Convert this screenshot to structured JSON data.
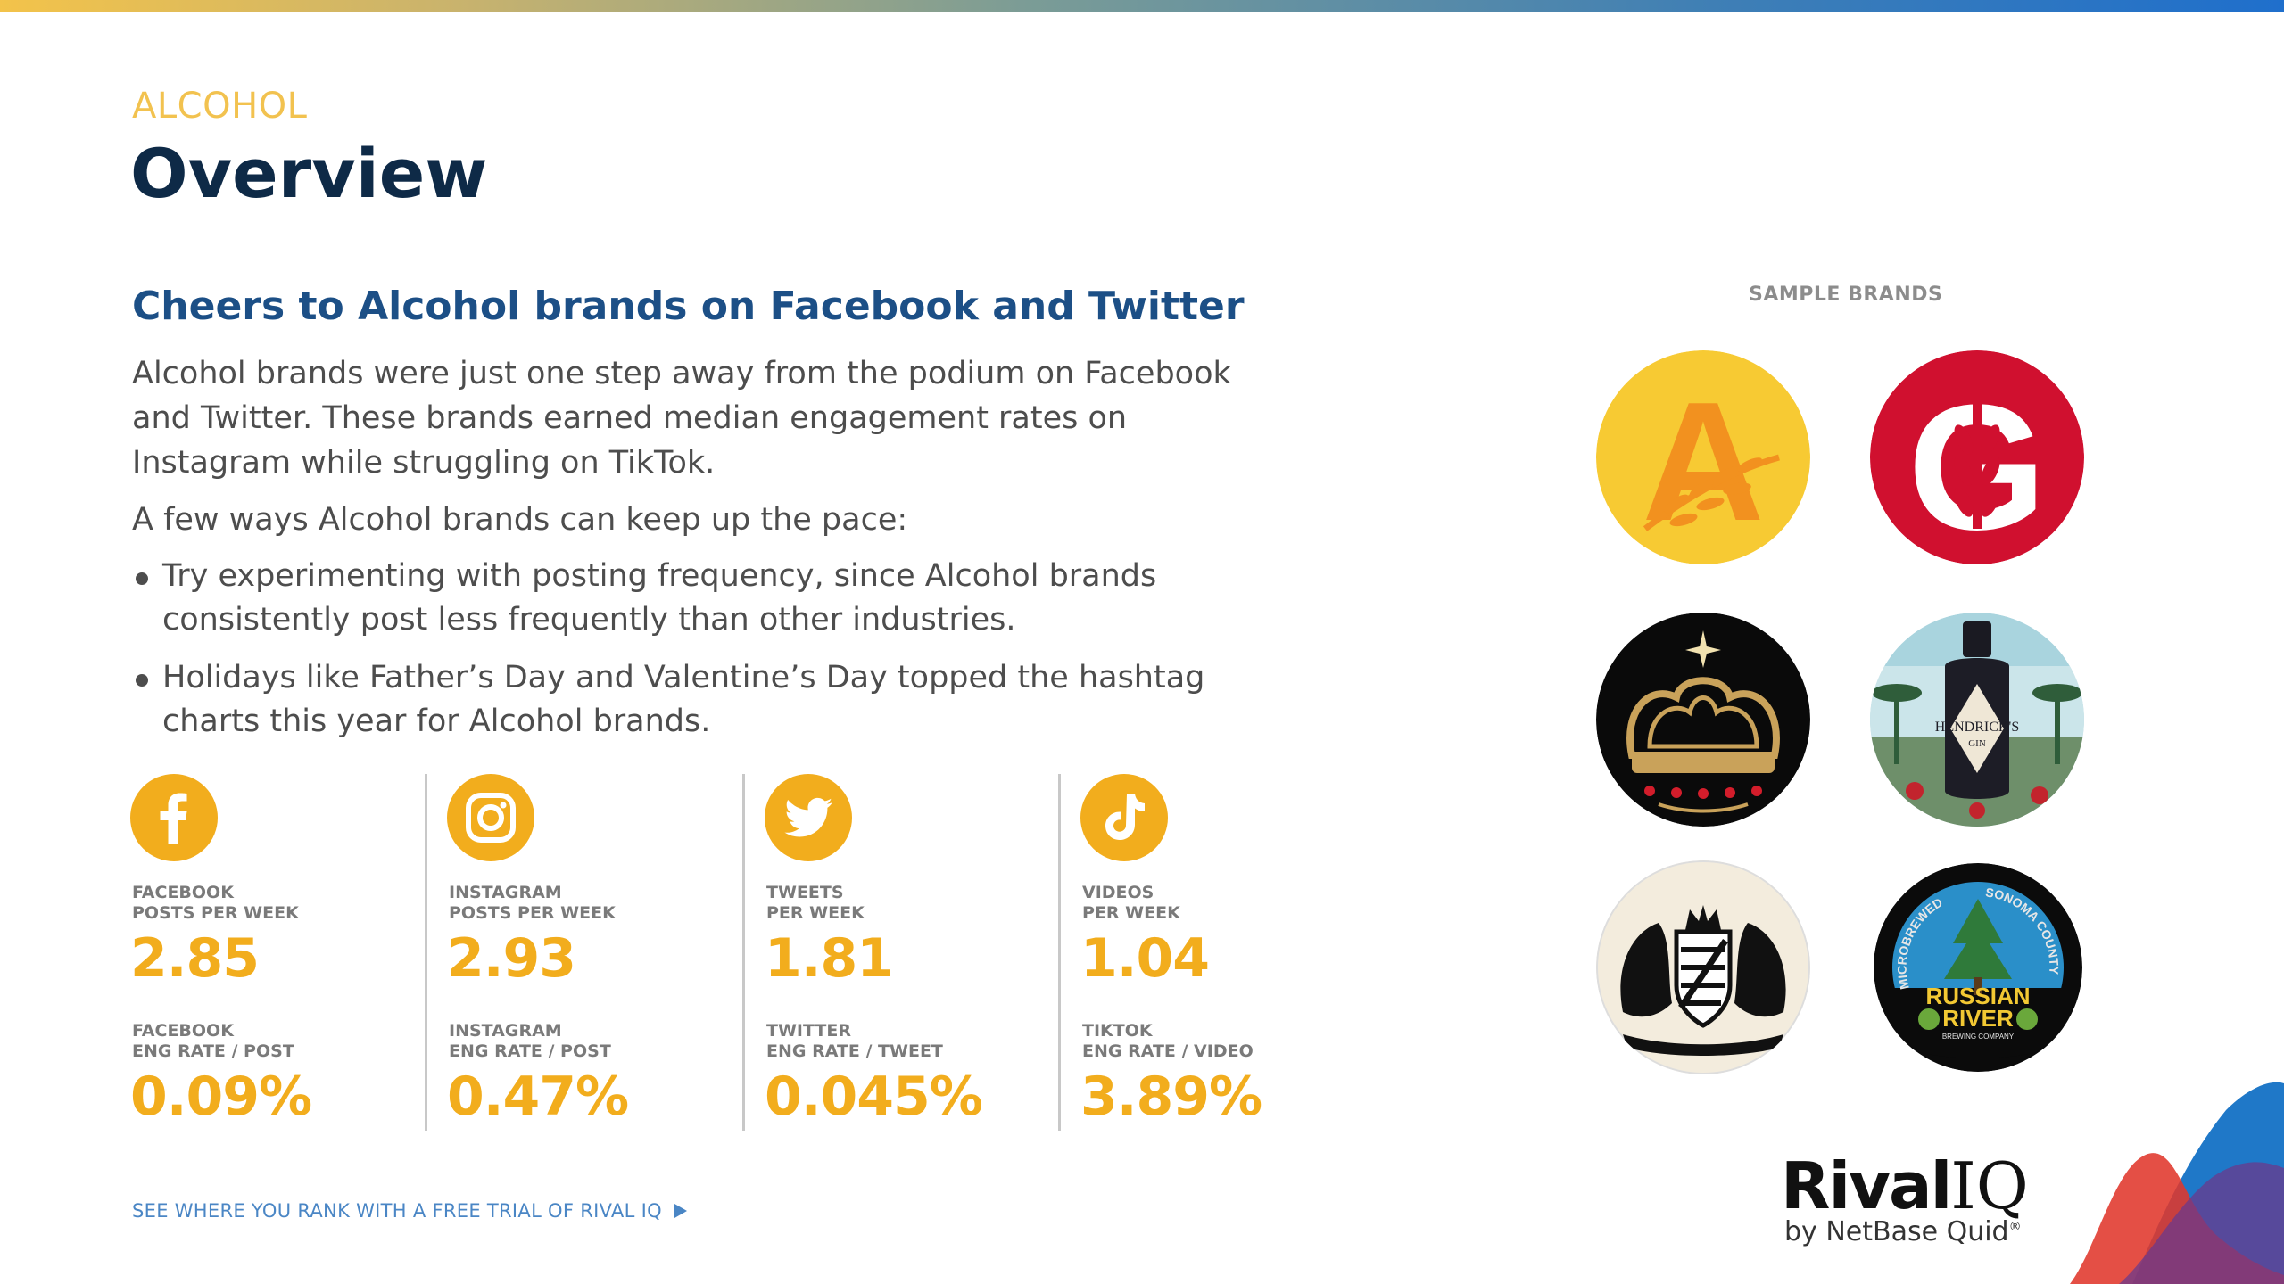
{
  "header": {
    "eyebrow": "ALCOHOL",
    "title": "Overview"
  },
  "main": {
    "headline": "Cheers to Alcohol brands on Facebook and Twitter",
    "paragraph1": "Alcohol brands were just one step away from the podium on Facebook and Twitter. These brands earned median engagement rates on Instagram while struggling on TikTok.",
    "paragraph2": "A few ways Alcohol brands can keep up the pace:",
    "bullets": [
      "Try experimenting with posting frequency, since Alcohol brands consistently post less frequently than other industries.",
      "Holidays like Father’s Day and Valentine’s Day topped the hashtag charts this year for Alcohol brands."
    ]
  },
  "stats": [
    {
      "icon": "facebook-icon",
      "label1a": "FACEBOOK",
      "label1b": "POSTS PER WEEK",
      "value1": "2.85",
      "label2a": "FACEBOOK",
      "label2b": "ENG RATE / POST",
      "value2": "0.09%"
    },
    {
      "icon": "instagram-icon",
      "label1a": "INSTAGRAM",
      "label1b": "POSTS PER WEEK",
      "value1": "2.93",
      "label2a": "INSTAGRAM",
      "label2b": "ENG RATE / POST",
      "value2": "0.47%"
    },
    {
      "icon": "twitter-icon",
      "label1a": "TWEETS",
      "label1b": "PER WEEK",
      "value1": "1.81",
      "label2a": "TWITTER",
      "label2b": "ENG RATE / TWEET",
      "value2": "0.045%"
    },
    {
      "icon": "tiktok-icon",
      "label1a": "VIDEOS",
      "label1b": "PER WEEK",
      "value1": "1.04",
      "label2a": "TIKTOK",
      "label2b": "ENG RATE / VIDEO",
      "value2": "3.89%"
    }
  ],
  "cta": {
    "label": "SEE WHERE YOU RANK WITH A FREE TRIAL OF RIVAL IQ"
  },
  "sample_brands": {
    "title": "SAMPLE BRANDS",
    "logos": [
      {
        "icon": "angry-orchard-logo",
        "letter": "A"
      },
      {
        "icon": "g-wheat-logo",
        "letter": "G"
      },
      {
        "icon": "crown-logo"
      },
      {
        "icon": "hendricks-gin-logo",
        "text": "HENDRICK'S",
        "subtext": "GIN"
      },
      {
        "icon": "lions-crest-logo"
      },
      {
        "icon": "russian-river-logo",
        "arc_left": "MICROBREWED",
        "arc_right": "SONOMA COUNTY",
        "name1": "RUSSIAN",
        "name2": "RIVER",
        "tag": "BREWING COMPANY"
      }
    ]
  },
  "branding": {
    "rival": "Rival",
    "iq": "IQ",
    "sub": "by NetBase Quid",
    "reg": "®"
  },
  "colors": {
    "accent_yellow": "#f2ad1d",
    "eyebrow": "#f2c24f",
    "title": "#0e2a47",
    "headline": "#1c4f86",
    "link": "#4a86c5"
  }
}
